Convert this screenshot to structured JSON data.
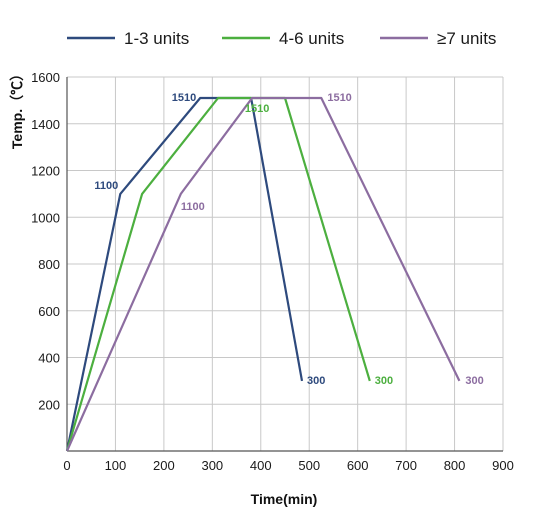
{
  "chart_data": {
    "type": "line",
    "xlabel": "Time(min)",
    "ylabel": "Temp.（℃）",
    "xlim": [
      0,
      900
    ],
    "ylim": [
      0,
      1600
    ],
    "xticks": [
      0,
      100,
      200,
      300,
      400,
      500,
      600,
      700,
      800,
      900
    ],
    "yticks": [
      200,
      400,
      600,
      800,
      1000,
      1200,
      1400,
      1600
    ],
    "grid": true,
    "legend_position": "top",
    "series": [
      {
        "name": "1-3 units",
        "color": "#2e4a7d",
        "x": [
          0,
          110,
          275,
          380,
          485
        ],
        "y": [
          0,
          1100,
          1510,
          1510,
          300
        ]
      },
      {
        "name": "4-6 units",
        "color": "#4caf3f",
        "x": [
          0,
          155,
          312,
          450,
          625
        ],
        "y": [
          0,
          1100,
          1510,
          1510,
          300
        ]
      },
      {
        "name": "≥7 units",
        "color": "#8c6da0",
        "x": [
          0,
          235,
          382,
          525,
          810
        ],
        "y": [
          0,
          1100,
          1510,
          1510,
          300
        ]
      }
    ],
    "annotations": [
      {
        "text": "1100",
        "series": 0,
        "point": 1,
        "anchor": "end",
        "dx": -2,
        "dy": -5
      },
      {
        "text": "1510",
        "series": 0,
        "point": 2,
        "anchor": "end",
        "dx": -4,
        "dy": 3
      },
      {
        "text": "300",
        "series": 0,
        "point": 4,
        "anchor": "start",
        "dx": 5,
        "dy": 3
      },
      {
        "text": "1510",
        "series": 1,
        "point": 2,
        "anchor": "middle",
        "dx": 39,
        "dy": 14
      },
      {
        "text": "300",
        "series": 1,
        "point": 4,
        "anchor": "start",
        "dx": 5,
        "dy": 3
      },
      {
        "text": "1100",
        "series": 2,
        "point": 1,
        "anchor": "middle",
        "dx": 12,
        "dy": 16
      },
      {
        "text": "1510",
        "series": 2,
        "point": 3,
        "anchor": "start",
        "dx": 6,
        "dy": 3
      },
      {
        "text": "300",
        "series": 2,
        "point": 4,
        "anchor": "start",
        "dx": 6,
        "dy": 3
      }
    ]
  }
}
